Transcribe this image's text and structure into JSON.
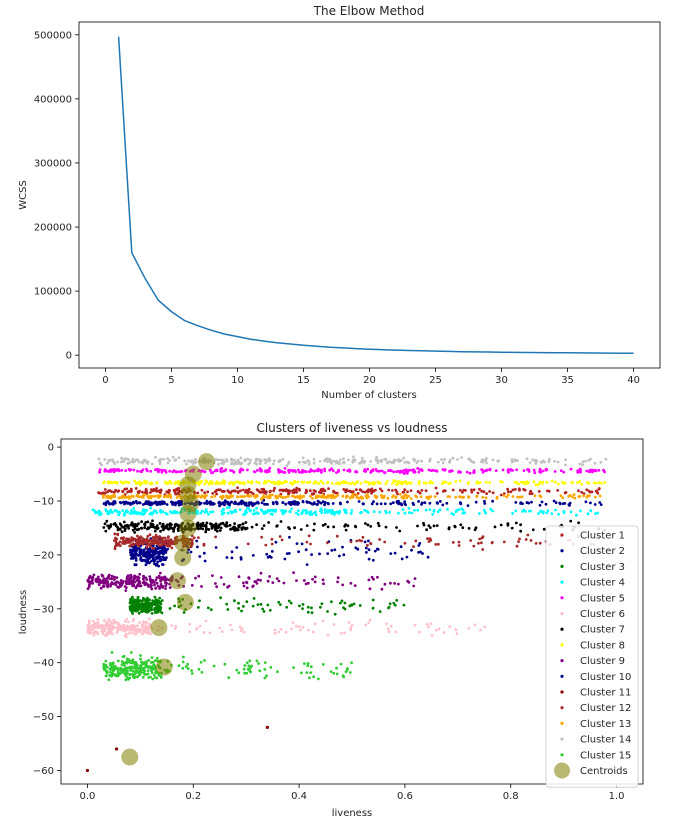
{
  "chart_data": [
    {
      "type": "line",
      "title": "The Elbow Method",
      "xlabel": "Number of clusters",
      "ylabel": "WCSS",
      "xlim": [
        -2,
        42
      ],
      "ylim": [
        -20000,
        520000
      ],
      "xticks": [
        0,
        5,
        10,
        15,
        20,
        25,
        30,
        35,
        40
      ],
      "yticks": [
        0,
        100000,
        200000,
        300000,
        400000,
        500000
      ],
      "color": "#1f77b4",
      "series": [
        {
          "x": [
            1,
            2,
            3,
            4,
            5,
            6,
            7,
            8,
            9,
            10,
            11,
            12,
            13,
            14,
            15,
            16,
            17,
            18,
            19,
            20,
            21,
            22,
            23,
            24,
            25,
            26,
            27,
            28,
            29,
            30,
            31,
            32,
            33,
            34,
            35,
            36,
            37,
            38,
            39,
            40
          ],
          "values": [
            497000,
            160000,
            120000,
            86000,
            68000,
            54000,
            46000,
            39000,
            33000,
            29000,
            25000,
            22000,
            19500,
            17500,
            15500,
            14000,
            12500,
            11300,
            10300,
            9400,
            8600,
            7900,
            7300,
            6800,
            6300,
            5900,
            5500,
            5200,
            4900,
            4600,
            4400,
            4200,
            4000,
            3800,
            3650,
            3500,
            3350,
            3200,
            3050,
            2900
          ]
        }
      ]
    },
    {
      "type": "scatter",
      "title": "Clusters of liveness vs loudness",
      "xlabel": "liveness",
      "ylabel": "loudness",
      "xlim": [
        -0.05,
        1.05
      ],
      "ylim": [
        -62.5,
        1.5
      ],
      "xticks": [
        "0.0",
        "0.2",
        "0.4",
        "0.6",
        "0.8",
        "1.0"
      ],
      "yticks": [
        "0",
        "−10",
        "−20",
        "−30",
        "−40",
        "−50",
        "−60"
      ],
      "xtick_values": [
        0,
        0.2,
        0.4,
        0.6,
        0.8,
        1.0
      ],
      "ytick_values": [
        0,
        -10,
        -20,
        -30,
        -40,
        -50,
        -60
      ],
      "legend_position": "lower-right",
      "series": [
        {
          "name": "Cluster 1",
          "color": "#b22222",
          "y_center": -8.2,
          "y_spread": 0.8,
          "x_range": [
            0.02,
            0.98
          ],
          "dense_until": 0.55
        },
        {
          "name": "Cluster 2",
          "color": "#00008b",
          "y_center": -19.5,
          "y_spread": 3.2,
          "x_range": [
            0.08,
            0.65
          ],
          "dense_until": 0.15
        },
        {
          "name": "Cluster 3",
          "color": "#008000",
          "y_center": -29.5,
          "y_spread": 2.2,
          "x_range": [
            0.08,
            0.6
          ],
          "dense_until": 0.14
        },
        {
          "name": "Cluster 4",
          "color": "#00ffff",
          "y_center": -12.0,
          "y_spread": 0.9,
          "x_range": [
            0.01,
            0.98
          ],
          "dense_until": 0.5
        },
        {
          "name": "Cluster 5",
          "color": "#ff00ff",
          "y_center": -4.4,
          "y_spread": 0.6,
          "x_range": [
            0.02,
            0.98
          ],
          "dense_until": 0.7
        },
        {
          "name": "Cluster 6",
          "color": "#ffc0cb",
          "y_center": -33.5,
          "y_spread": 2.0,
          "x_range": [
            0.0,
            0.76
          ],
          "dense_until": 0.12
        },
        {
          "name": "Cluster 7",
          "color": "#000000",
          "y_center": -14.8,
          "y_spread": 1.3,
          "x_range": [
            0.03,
            0.98
          ],
          "dense_until": 0.3
        },
        {
          "name": "Cluster 8",
          "color": "#ffff00",
          "y_center": -6.6,
          "y_spread": 0.5,
          "x_range": [
            0.03,
            0.98
          ],
          "dense_until": 0.6
        },
        {
          "name": "Cluster 9",
          "color": "#800080",
          "y_center": -25.0,
          "y_spread": 2.0,
          "x_range": [
            0.0,
            0.62
          ],
          "dense_until": 0.16
        },
        {
          "name": "Cluster 10",
          "color": "#00008b",
          "y_center": -10.4,
          "y_spread": 0.6,
          "x_range": [
            0.03,
            0.98
          ],
          "dense_until": 0.45
        },
        {
          "name": "Cluster 11",
          "color": "#8b0000",
          "y_center": -58.0,
          "y_spread": 2.0,
          "x_range": [
            0.0,
            0.35
          ],
          "dense_until": 0.05,
          "points": [
            [
              0.0,
              -60.0
            ],
            [
              0.055,
              -56.0
            ],
            [
              0.34,
              -52.0
            ]
          ]
        },
        {
          "name": "Cluster 12",
          "color": "#a52a2a",
          "y_center": -17.5,
          "y_spread": 1.6,
          "x_range": [
            0.05,
            0.98
          ],
          "dense_until": 0.2
        },
        {
          "name": "Cluster 13",
          "color": "#ffa500",
          "y_center": -9.2,
          "y_spread": 0.5,
          "x_range": [
            0.03,
            0.98
          ],
          "dense_until": 0.55
        },
        {
          "name": "Cluster 14",
          "color": "#c0c0c0",
          "y_center": -2.6,
          "y_spread": 1.0,
          "x_range": [
            0.02,
            0.98
          ],
          "dense_until": 0.6
        },
        {
          "name": "Cluster 15",
          "color": "#32cd32",
          "y_center": -41.0,
          "y_spread": 3.0,
          "x_range": [
            0.03,
            0.5
          ],
          "dense_until": 0.14
        }
      ],
      "centroids": {
        "name": "Centroids",
        "color": "#808000",
        "points": [
          [
            0.225,
            -2.7
          ],
          [
            0.2,
            -5.0
          ],
          [
            0.19,
            -7.0
          ],
          [
            0.19,
            -8.8
          ],
          [
            0.195,
            -10.5
          ],
          [
            0.19,
            -12.3
          ],
          [
            0.19,
            -15.0
          ],
          [
            0.18,
            -17.8
          ],
          [
            0.18,
            -20.5
          ],
          [
            0.17,
            -24.8
          ],
          [
            0.185,
            -28.8
          ],
          [
            0.135,
            -33.5
          ],
          [
            0.145,
            -40.8
          ],
          [
            0.08,
            -57.5
          ]
        ]
      }
    }
  ]
}
